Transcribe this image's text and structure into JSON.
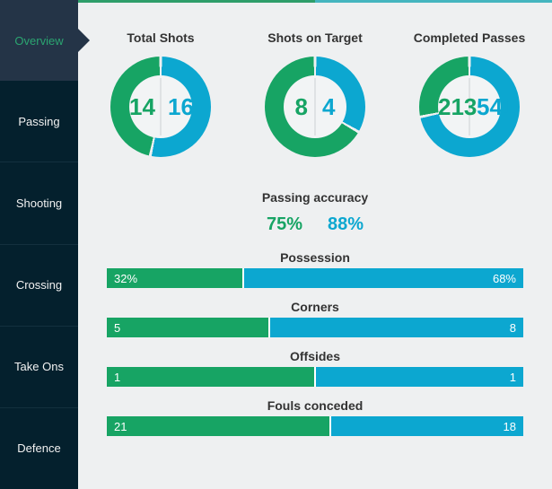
{
  "colors": {
    "home_green": "#17a464",
    "away_blue": "#0ca7d0",
    "accent_green": "#2e9e6a",
    "accent_teal": "#44b5bf",
    "sidebar_bg": "#04202d",
    "sidebar_active_bg": "#243447",
    "sidebar_active_text": "#2ba571",
    "content_bg": "#eef0f1",
    "hole_bg": "#f2f4f5",
    "title_text": "#333333"
  },
  "sidebar": {
    "items": [
      {
        "label": "Overview",
        "active": true
      },
      {
        "label": "Passing",
        "active": false
      },
      {
        "label": "Shooting",
        "active": false
      },
      {
        "label": "Crossing",
        "active": false
      },
      {
        "label": "Take Ons",
        "active": false
      },
      {
        "label": "Defence",
        "active": false
      }
    ]
  },
  "chart_data": {
    "type": "dashboard",
    "series": [
      "home",
      "away"
    ],
    "series_colors": {
      "home": "#17a464",
      "away": "#0ca7d0"
    },
    "donuts": [
      {
        "type": "pie",
        "variant": "donut",
        "title": "Total Shots",
        "values": {
          "home": 14,
          "away": 16
        }
      },
      {
        "type": "pie",
        "variant": "donut",
        "title": "Shots on Target",
        "values": {
          "home": 8,
          "away": 4
        }
      },
      {
        "type": "pie",
        "variant": "donut",
        "title": "Completed Passes",
        "values": {
          "home": 213,
          "away": 541
        }
      }
    ],
    "passing_accuracy": {
      "title": "Passing accuracy",
      "values": {
        "home": "75%",
        "away": "88%"
      }
    },
    "bars": [
      {
        "type": "bar",
        "variant": "stacked",
        "title": "Possession",
        "values": {
          "home": 32,
          "away": 68
        },
        "labels": {
          "home": "32%",
          "away": "68%"
        }
      },
      {
        "type": "bar",
        "variant": "stacked",
        "title": "Corners",
        "values": {
          "home": 5,
          "away": 8
        },
        "labels": {
          "home": "5",
          "away": "8"
        }
      },
      {
        "type": "bar",
        "variant": "stacked",
        "title": "Offsides",
        "values": {
          "home": 1,
          "away": 1
        },
        "labels": {
          "home": "1",
          "away": "1"
        }
      },
      {
        "type": "bar",
        "variant": "stacked",
        "title": "Fouls conceded",
        "values": {
          "home": 21,
          "away": 18
        },
        "labels": {
          "home": "21",
          "away": "18"
        }
      }
    ]
  }
}
